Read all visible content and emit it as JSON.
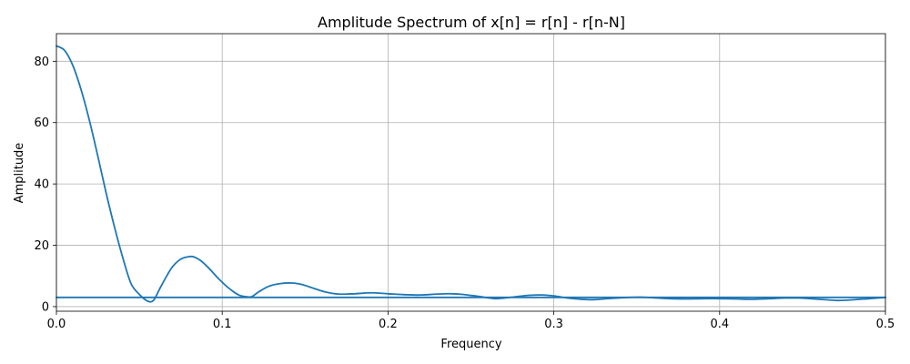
{
  "chart_data": {
    "type": "line",
    "title": "Amplitude Spectrum of x[n] = r[n] - r[n-N]",
    "xlabel": "Frequency",
    "ylabel": "Amplitude",
    "xlim": [
      0,
      0.5
    ],
    "ylim": [
      -1.5,
      89
    ],
    "grid": true,
    "color": "#1f77b4",
    "x_ticks": [
      0,
      0.1,
      0.2,
      0.3,
      0.4,
      0.5
    ],
    "x_tick_labels": [
      "0.0",
      "0.1",
      "0.2",
      "0.3",
      "0.4",
      "0.5"
    ],
    "y_ticks": [
      0,
      20,
      40,
      60,
      80
    ],
    "y_tick_labels": [
      "0",
      "20",
      "40",
      "60",
      "80"
    ],
    "series": [
      {
        "x": [
          0,
          0.005,
          0.01,
          0.015,
          0.02,
          0.025,
          0.03,
          0.035,
          0.04,
          0.045,
          0.05,
          0.055,
          0.0585,
          0.062,
          0.066,
          0.07,
          0.075,
          0.08,
          0.083,
          0.087,
          0.092,
          0.098,
          0.104,
          0.11,
          0.115,
          0.118,
          0.122,
          0.128,
          0.135,
          0.142,
          0.148,
          0.155,
          0.162,
          0.17,
          0.18,
          0.19,
          0.2,
          0.21,
          0.22,
          0.23,
          0.238,
          0.245,
          0.255,
          0.265,
          0.275,
          0.285,
          0.293,
          0.3,
          0.31,
          0.32,
          0.325,
          0.335,
          0.345,
          0.352,
          0.36,
          0.37,
          0.38,
          0.39,
          0.4,
          0.41,
          0.42,
          0.43,
          0.44,
          0.448,
          0.455,
          0.465,
          0.472,
          0.48,
          0.49,
          0.5
        ],
        "y": [
          85,
          83.5,
          78.5,
          70.5,
          60.5,
          49,
          37,
          26,
          16,
          7.5,
          4,
          1.8,
          2.0,
          5.5,
          9.5,
          13,
          15.5,
          16.3,
          16.2,
          15,
          12.5,
          9,
          6,
          3.8,
          3.2,
          3.3,
          4.8,
          6.6,
          7.5,
          7.7,
          7.2,
          6,
          4.8,
          4.1,
          4.2,
          4.5,
          4.2,
          3.9,
          3.8,
          4.1,
          4.2,
          4.0,
          3.3,
          2.6,
          3.1,
          3.7,
          3.8,
          3.5,
          2.7,
          2.3,
          2.3,
          2.7,
          3.0,
          3.1,
          2.9,
          2.6,
          2.5,
          2.6,
          2.6,
          2.5,
          2.4,
          2.6,
          2.8,
          2.8,
          2.6,
          2.2,
          2.0,
          2.2,
          2.6,
          3.0
        ]
      },
      {
        "x": [
          0,
          0.5
        ],
        "y": [
          3,
          3
        ]
      }
    ]
  }
}
